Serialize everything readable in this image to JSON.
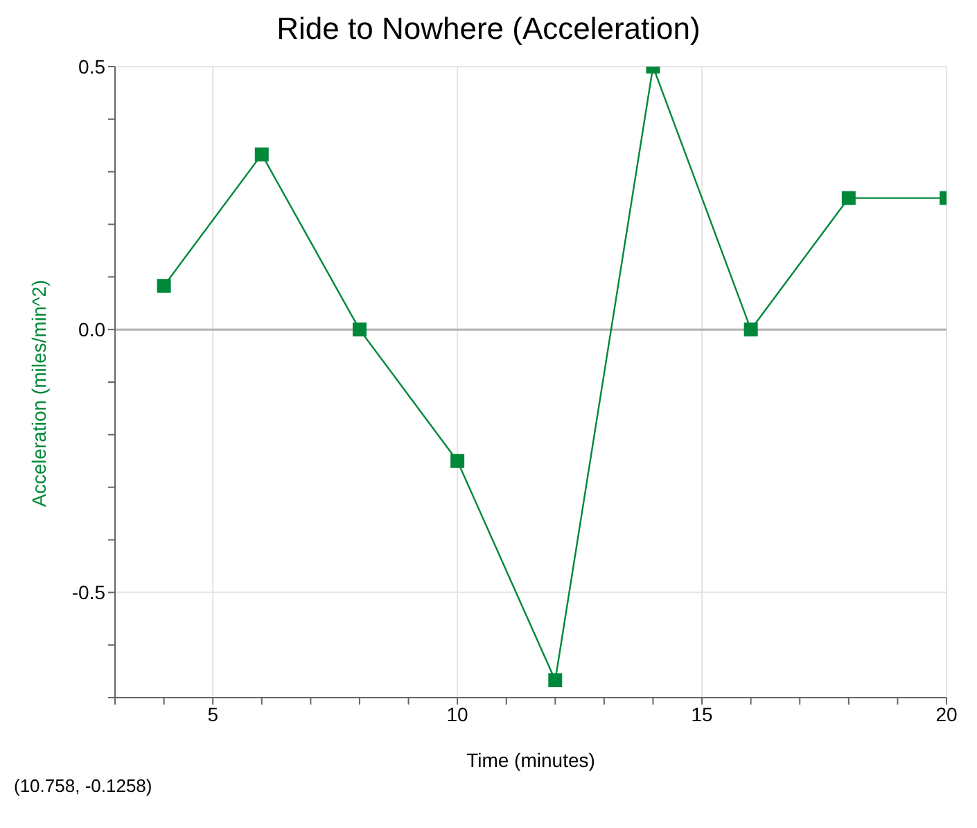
{
  "chart_data": {
    "type": "line",
    "title": "Ride to Nowhere (Acceleration)",
    "xlabel": "Time (minutes)",
    "ylabel": "Acceleration (miles/min^2)",
    "annotations": [
      "(10.758, -0.1258)"
    ],
    "x": [
      4,
      6,
      8,
      10,
      12,
      14,
      16,
      18,
      20
    ],
    "series": [
      {
        "color": "#00883a",
        "values": [
          0.083,
          0.333,
          0,
          -0.25,
          -0.667,
          0.5,
          0,
          0.25,
          0.25
        ]
      }
    ],
    "xlim": [
      3,
      20
    ],
    "xticks": [
      {
        "value": 3,
        "label": null
      },
      {
        "value": 4,
        "label": null
      },
      5,
      {
        "value": 6,
        "label": null
      },
      {
        "value": 7,
        "label": null
      },
      {
        "value": 8,
        "label": null
      },
      {
        "value": 9,
        "label": null
      },
      10,
      {
        "value": 11,
        "label": null
      },
      {
        "value": 12,
        "label": null
      },
      {
        "value": 13,
        "label": null
      },
      {
        "value": 14,
        "label": null
      },
      15,
      {
        "value": 16,
        "label": null
      },
      {
        "value": 17,
        "label": null
      },
      {
        "value": 18,
        "label": null
      },
      {
        "value": 19,
        "label": null
      },
      20
    ],
    "ylim": [
      -0.7,
      0.5
    ],
    "yticks": [
      {
        "value": -0.7,
        "label": null
      },
      {
        "value": -0.6,
        "label": null
      },
      -0.5,
      {
        "value": -0.4,
        "label": null
      },
      {
        "value": -0.3,
        "label": null
      },
      {
        "value": -0.2,
        "label": null
      },
      {
        "value": -0.1,
        "label": null
      },
      {
        "value": 0,
        "label": "0.0"
      },
      {
        "value": 0.1,
        "label": null
      },
      {
        "value": 0.2,
        "label": null
      },
      {
        "value": 0.3,
        "label": null
      },
      {
        "value": 0.4,
        "label": null
      },
      0.5
    ],
    "ref_lines": [
      {
        "axis": "y",
        "value": 0,
        "color": "#b0b0b0"
      }
    ],
    "grid": true,
    "marker": "square",
    "line_style": "solid"
  }
}
